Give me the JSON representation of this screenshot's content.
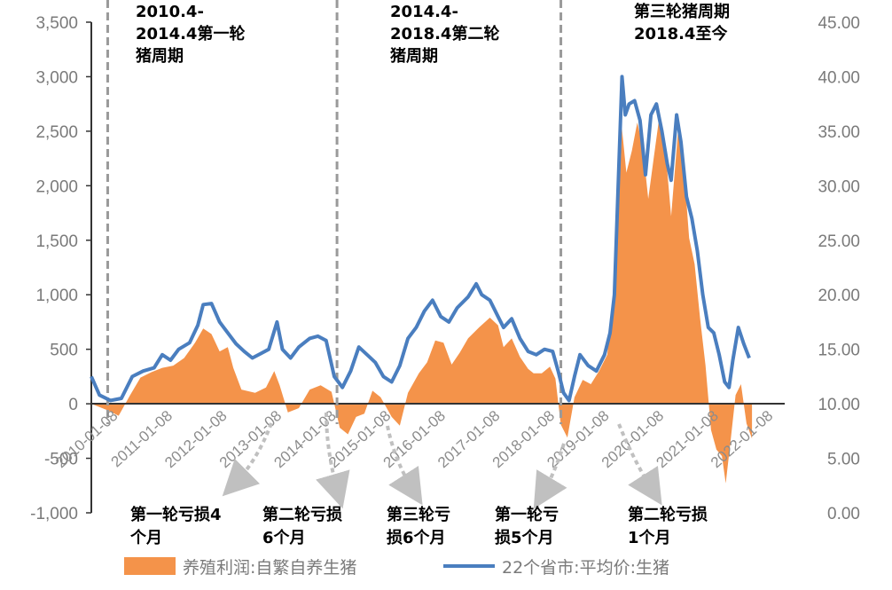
{
  "chart_data": {
    "type": "area",
    "x_labels": [
      "2010-01-08",
      "2011-01-08",
      "2012-01-08",
      "2013-01-08",
      "2014-01-08",
      "2015-01-08",
      "2016-01-08",
      "2017-01-08",
      "2018-01-08",
      "2019-01-08",
      "2020-01-08",
      "2021-01-08",
      "2022-01-08"
    ],
    "x_range": [
      2010.0,
      2022.7
    ],
    "left_axis": {
      "ticks": [
        "3,500",
        "3,000",
        "2,500",
        "2,000",
        "1,500",
        "1,000",
        "500",
        "0",
        "-500",
        "-1,000"
      ],
      "ylim": [
        -1000,
        3500
      ]
    },
    "right_axis": {
      "ticks": [
        "45.00",
        "40.00",
        "35.00",
        "30.00",
        "25.00",
        "20.00",
        "15.00",
        "10.00",
        "5.00",
        "0.00"
      ],
      "ylim": [
        0,
        45
      ]
    },
    "series": [
      {
        "name": "养殖利润:自繁自养生猪",
        "kind": "bar-area",
        "axis": "left",
        "color": "#f4934a",
        "points": [
          [
            2010.0,
            0
          ],
          [
            2010.3,
            -60
          ],
          [
            2010.5,
            -110
          ],
          [
            2010.7,
            70
          ],
          [
            2010.9,
            240
          ],
          [
            2011.1,
            290
          ],
          [
            2011.3,
            330
          ],
          [
            2011.5,
            350
          ],
          [
            2011.7,
            420
          ],
          [
            2011.9,
            560
          ],
          [
            2012.05,
            690
          ],
          [
            2012.2,
            640
          ],
          [
            2012.35,
            480
          ],
          [
            2012.5,
            520
          ],
          [
            2012.6,
            330
          ],
          [
            2012.75,
            130
          ],
          [
            2013.0,
            100
          ],
          [
            2013.2,
            150
          ],
          [
            2013.35,
            300
          ],
          [
            2013.45,
            170
          ],
          [
            2013.6,
            -80
          ],
          [
            2013.8,
            -40
          ],
          [
            2014.0,
            130
          ],
          [
            2014.2,
            170
          ],
          [
            2014.4,
            110
          ],
          [
            2014.55,
            -220
          ],
          [
            2014.7,
            -280
          ],
          [
            2014.85,
            -120
          ],
          [
            2015.0,
            -90
          ],
          [
            2015.15,
            120
          ],
          [
            2015.3,
            60
          ],
          [
            2015.5,
            -120
          ],
          [
            2015.65,
            -200
          ],
          [
            2015.8,
            100
          ],
          [
            2016.0,
            280
          ],
          [
            2016.15,
            380
          ],
          [
            2016.3,
            580
          ],
          [
            2016.45,
            560
          ],
          [
            2016.6,
            360
          ],
          [
            2016.75,
            470
          ],
          [
            2016.9,
            600
          ],
          [
            2017.1,
            700
          ],
          [
            2017.3,
            790
          ],
          [
            2017.45,
            720
          ],
          [
            2017.55,
            520
          ],
          [
            2017.7,
            600
          ],
          [
            2017.85,
            430
          ],
          [
            2018.0,
            320
          ],
          [
            2018.1,
            280
          ],
          [
            2018.25,
            280
          ],
          [
            2018.4,
            340
          ],
          [
            2018.5,
            230
          ],
          [
            2018.6,
            -190
          ],
          [
            2018.72,
            -310
          ],
          [
            2018.85,
            60
          ],
          [
            2019.0,
            220
          ],
          [
            2019.15,
            180
          ],
          [
            2019.3,
            300
          ],
          [
            2019.45,
            450
          ],
          [
            2019.55,
            980
          ],
          [
            2019.65,
            1740
          ],
          [
            2019.72,
            2520
          ],
          [
            2019.8,
            2120
          ],
          [
            2019.9,
            2320
          ],
          [
            2020.0,
            2580
          ],
          [
            2020.1,
            2360
          ],
          [
            2020.2,
            1880
          ],
          [
            2020.3,
            2250
          ],
          [
            2020.4,
            2620
          ],
          [
            2020.5,
            2420
          ],
          [
            2020.62,
            1720
          ],
          [
            2020.75,
            2520
          ],
          [
            2020.85,
            2180
          ],
          [
            2020.95,
            1520
          ],
          [
            2021.05,
            1280
          ],
          [
            2021.15,
            780
          ],
          [
            2021.25,
            350
          ],
          [
            2021.35,
            -240
          ],
          [
            2021.45,
            -420
          ],
          [
            2021.55,
            -480
          ],
          [
            2021.62,
            -730
          ],
          [
            2021.7,
            -380
          ],
          [
            2021.8,
            80
          ],
          [
            2021.9,
            180
          ],
          [
            2022.0,
            -180
          ],
          [
            2022.1,
            -320
          ]
        ]
      },
      {
        "name": "22个省市:平均价:生猪",
        "kind": "line",
        "axis": "right",
        "color": "#4a7ebf",
        "points": [
          [
            2010.0,
            12.5
          ],
          [
            2010.15,
            10.8
          ],
          [
            2010.35,
            10.3
          ],
          [
            2010.55,
            10.5
          ],
          [
            2010.75,
            12.5
          ],
          [
            2010.95,
            13.0
          ],
          [
            2011.15,
            13.3
          ],
          [
            2011.3,
            14.5
          ],
          [
            2011.45,
            14.0
          ],
          [
            2011.6,
            15.0
          ],
          [
            2011.8,
            15.6
          ],
          [
            2011.95,
            17.2
          ],
          [
            2012.05,
            19.1
          ],
          [
            2012.2,
            19.2
          ],
          [
            2012.35,
            17.5
          ],
          [
            2012.5,
            16.5
          ],
          [
            2012.65,
            15.5
          ],
          [
            2012.8,
            14.8
          ],
          [
            2012.95,
            14.2
          ],
          [
            2013.1,
            14.6
          ],
          [
            2013.25,
            15.0
          ],
          [
            2013.4,
            17.5
          ],
          [
            2013.5,
            15.0
          ],
          [
            2013.65,
            14.2
          ],
          [
            2013.8,
            15.2
          ],
          [
            2014.0,
            16.0
          ],
          [
            2014.15,
            16.2
          ],
          [
            2014.3,
            15.8
          ],
          [
            2014.45,
            12.5
          ],
          [
            2014.6,
            11.5
          ],
          [
            2014.75,
            13.0
          ],
          [
            2014.9,
            15.2
          ],
          [
            2015.05,
            14.5
          ],
          [
            2015.2,
            13.8
          ],
          [
            2015.35,
            12.5
          ],
          [
            2015.5,
            12.0
          ],
          [
            2015.65,
            13.5
          ],
          [
            2015.8,
            16.0
          ],
          [
            2015.95,
            17.0
          ],
          [
            2016.1,
            18.5
          ],
          [
            2016.25,
            19.5
          ],
          [
            2016.4,
            18.0
          ],
          [
            2016.55,
            17.5
          ],
          [
            2016.7,
            18.8
          ],
          [
            2016.9,
            19.8
          ],
          [
            2017.05,
            21.0
          ],
          [
            2017.15,
            20.0
          ],
          [
            2017.3,
            19.5
          ],
          [
            2017.45,
            18.0
          ],
          [
            2017.55,
            17.0
          ],
          [
            2017.7,
            17.8
          ],
          [
            2017.85,
            16.0
          ],
          [
            2018.0,
            14.8
          ],
          [
            2018.15,
            14.5
          ],
          [
            2018.3,
            15.0
          ],
          [
            2018.45,
            14.8
          ],
          [
            2018.55,
            13.0
          ],
          [
            2018.65,
            11.0
          ],
          [
            2018.75,
            10.3
          ],
          [
            2018.85,
            12.5
          ],
          [
            2018.95,
            14.5
          ],
          [
            2019.1,
            13.5
          ],
          [
            2019.25,
            13.0
          ],
          [
            2019.4,
            14.5
          ],
          [
            2019.5,
            16.5
          ],
          [
            2019.58,
            20.0
          ],
          [
            2019.65,
            30.0
          ],
          [
            2019.72,
            40.0
          ],
          [
            2019.78,
            36.5
          ],
          [
            2019.85,
            37.5
          ],
          [
            2019.95,
            37.8
          ],
          [
            2020.05,
            36.0
          ],
          [
            2020.15,
            31.0
          ],
          [
            2020.25,
            36.5
          ],
          [
            2020.35,
            37.5
          ],
          [
            2020.45,
            35.0
          ],
          [
            2020.55,
            32.0
          ],
          [
            2020.62,
            30.5
          ],
          [
            2020.72,
            36.5
          ],
          [
            2020.8,
            34.0
          ],
          [
            2020.9,
            29.0
          ],
          [
            2021.0,
            27.0
          ],
          [
            2021.1,
            24.0
          ],
          [
            2021.2,
            20.0
          ],
          [
            2021.3,
            17.0
          ],
          [
            2021.4,
            16.5
          ],
          [
            2021.5,
            14.5
          ],
          [
            2021.6,
            12.0
          ],
          [
            2021.68,
            11.5
          ],
          [
            2021.75,
            14.0
          ],
          [
            2021.85,
            17.0
          ],
          [
            2021.95,
            15.5
          ],
          [
            2022.05,
            14.2
          ]
        ]
      }
    ],
    "legend": {
      "position": "bottom",
      "items": [
        "养殖利润:自繁自养生猪",
        "22个省市:平均价:生猪"
      ]
    },
    "dividers": [
      2010.3,
      2014.5,
      2018.6
    ],
    "cycle_labels": [
      [
        "2010.4-",
        "2014.4第一轮",
        "猪周期"
      ],
      [
        "2014.4-",
        "2018.4第二轮",
        "猪周期"
      ],
      [
        "第三轮猪周期",
        "2018.4至今"
      ]
    ],
    "loss_labels": [
      [
        "第一轮亏损4",
        "个月"
      ],
      [
        "第二轮亏损",
        "6个月"
      ],
      [
        "第三轮亏",
        "损6个月"
      ],
      [
        "第一轮亏",
        "损5个月"
      ],
      [
        "第二轮亏损",
        "1个月"
      ]
    ]
  }
}
